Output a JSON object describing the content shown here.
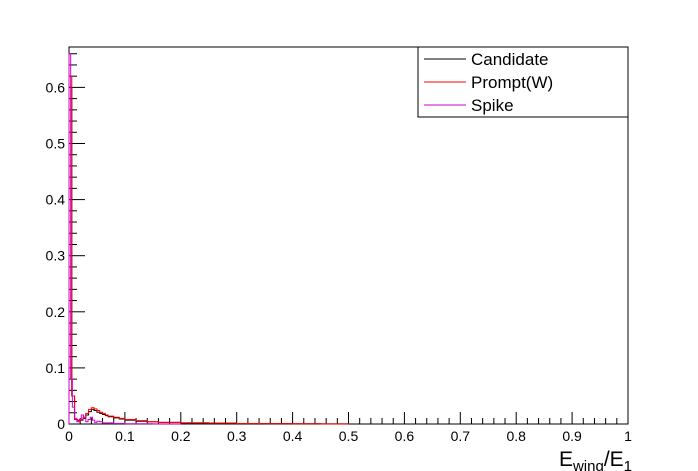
{
  "chart_data": {
    "type": "line",
    "title": "",
    "xlabel": {
      "main": "E",
      "sub1": "wing",
      "mid": "/E",
      "sub2": "1"
    },
    "ylabel": "",
    "xlim": [
      0,
      1
    ],
    "ylim": [
      0,
      0.672
    ],
    "xticks": [
      "0",
      "0.1",
      "0.2",
      "0.3",
      "0.4",
      "0.5",
      "0.6",
      "0.7",
      "0.8",
      "0.9",
      "1"
    ],
    "yticks": [
      "0",
      "0.1",
      "0.2",
      "0.3",
      "0.4",
      "0.5",
      "0.6"
    ],
    "legend_position": "top-right",
    "series": [
      {
        "name": "Candidate",
        "color": "#000000",
        "x": [
          0,
          0.005,
          0.01,
          0.015,
          0.02,
          0.025,
          0.03,
          0.035,
          0.04,
          0.045,
          0.05,
          0.055,
          0.06,
          0.065,
          0.07,
          0.08,
          0.09,
          0.1,
          0.12,
          0.14,
          0.16,
          0.2,
          0.25,
          0.3,
          0.35,
          0.4,
          0.45,
          0.5
        ],
        "y": [
          0.6,
          0.05,
          0.008,
          0.006,
          0.007,
          0.01,
          0.016,
          0.022,
          0.026,
          0.024,
          0.021,
          0.019,
          0.017,
          0.015,
          0.013,
          0.011,
          0.009,
          0.007,
          0.005,
          0.004,
          0.003,
          0.002,
          0.0015,
          0.001,
          0.0007,
          0.0005,
          0.0002,
          0
        ]
      },
      {
        "name": "Prompt(W)",
        "color": "#ff0000",
        "x": [
          0,
          0.005,
          0.01,
          0.015,
          0.02,
          0.025,
          0.03,
          0.035,
          0.04,
          0.045,
          0.05,
          0.055,
          0.06,
          0.065,
          0.07,
          0.08,
          0.09,
          0.1,
          0.12,
          0.14,
          0.16,
          0.2,
          0.25,
          0.3,
          0.35,
          0.4,
          0.45,
          0.5
        ],
        "y": [
          0.62,
          0.05,
          0.008,
          0.006,
          0.008,
          0.012,
          0.019,
          0.026,
          0.029,
          0.027,
          0.024,
          0.021,
          0.019,
          0.016,
          0.014,
          0.012,
          0.01,
          0.008,
          0.006,
          0.004,
          0.003,
          0.002,
          0.0015,
          0.001,
          0.0007,
          0.0005,
          0.0002,
          0
        ]
      },
      {
        "name": "Spike",
        "color": "#cc00cc",
        "x": [
          0,
          0.003,
          0.006,
          0.01,
          0.014,
          0.018,
          0.022,
          0.026,
          0.03,
          0.034,
          0.038,
          0.042,
          0.046,
          0.05,
          0.055,
          0.06,
          0.07,
          0.08,
          0.1,
          0.15,
          0.2
        ],
        "y": [
          0.66,
          0.08,
          0.03,
          0.01,
          0.004,
          0.008,
          0.016,
          0.012,
          0.004,
          0.008,
          0.012,
          0.007,
          0.003,
          0.005,
          0.004,
          0.002,
          0.002,
          0.001,
          0.0005,
          0.0002,
          0
        ]
      }
    ]
  }
}
